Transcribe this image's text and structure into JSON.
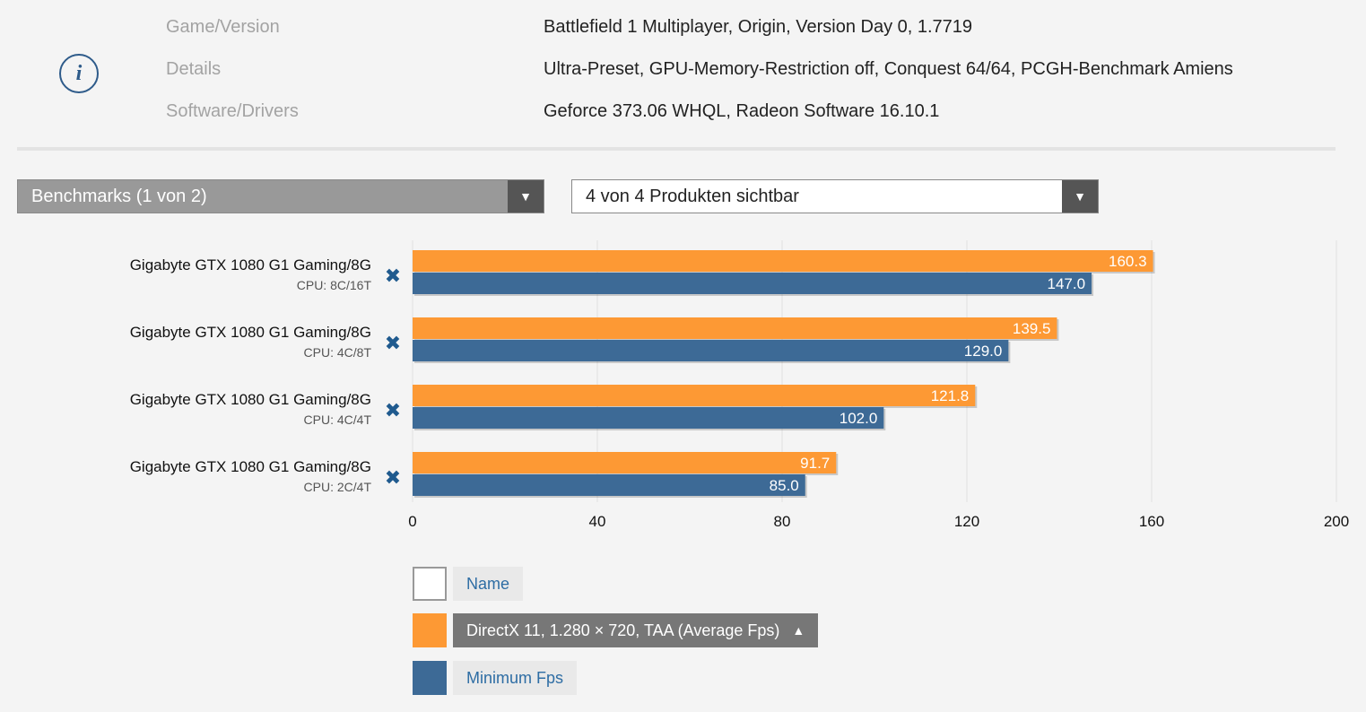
{
  "info": {
    "icon": "info-icon",
    "rows": [
      {
        "label": "Game/Version",
        "value": "Battlefield 1 Multiplayer, Origin, Version Day 0, 1.7719"
      },
      {
        "label": "Details",
        "value": "Ultra-Preset, GPU-Memory-Restriction off, Conquest 64/64, PCGH-Benchmark Amiens"
      },
      {
        "label": "Software/Drivers",
        "value": "Geforce 373.06 WHQL, Radeon Software 16.10.1"
      }
    ]
  },
  "dropdowns": {
    "benchmarks": "Benchmarks (1 von 2)",
    "products": "4 von 4 Produkten sichtbar",
    "arrow": "▼"
  },
  "colors": {
    "average": "#fd9934",
    "minimum": "#3d6a96",
    "grid": "#e0e0e0"
  },
  "chart_data": {
    "type": "bar",
    "orientation": "horizontal",
    "categories": [
      {
        "name": "Gigabyte GTX 1080 G1 Gaming/8G",
        "cpu": "CPU: 8C/16T"
      },
      {
        "name": "Gigabyte GTX 1080 G1 Gaming/8G",
        "cpu": "CPU: 4C/8T"
      },
      {
        "name": "Gigabyte GTX 1080 G1 Gaming/8G",
        "cpu": "CPU: 4C/4T"
      },
      {
        "name": "Gigabyte GTX 1080 G1 Gaming/8G",
        "cpu": "CPU: 2C/4T"
      }
    ],
    "series": [
      {
        "name": "DirectX 11, 1.280 × 720, TAA (Average Fps)",
        "values": [
          160.3,
          139.5,
          121.8,
          91.7
        ],
        "labels": [
          "160.3",
          "139.5",
          "121.8",
          "91.7"
        ]
      },
      {
        "name": "Minimum Fps",
        "values": [
          147.0,
          129.0,
          102.0,
          85.0
        ],
        "labels": [
          "147.0",
          "129.0",
          "102.0",
          "85.0"
        ]
      }
    ],
    "xlim": [
      0,
      200
    ],
    "ticks": [
      0,
      40,
      80,
      120,
      160,
      200
    ],
    "tick_labels": [
      "0",
      "40",
      "80",
      "120",
      "160",
      "200"
    ],
    "grid": true,
    "remove_symbol": "✖"
  },
  "legend": {
    "name_label": "Name",
    "average_label": "DirectX 11, 1.280 × 720, TAA (Average Fps)",
    "sort_arrow": "▲",
    "minimum_label": "Minimum Fps"
  }
}
